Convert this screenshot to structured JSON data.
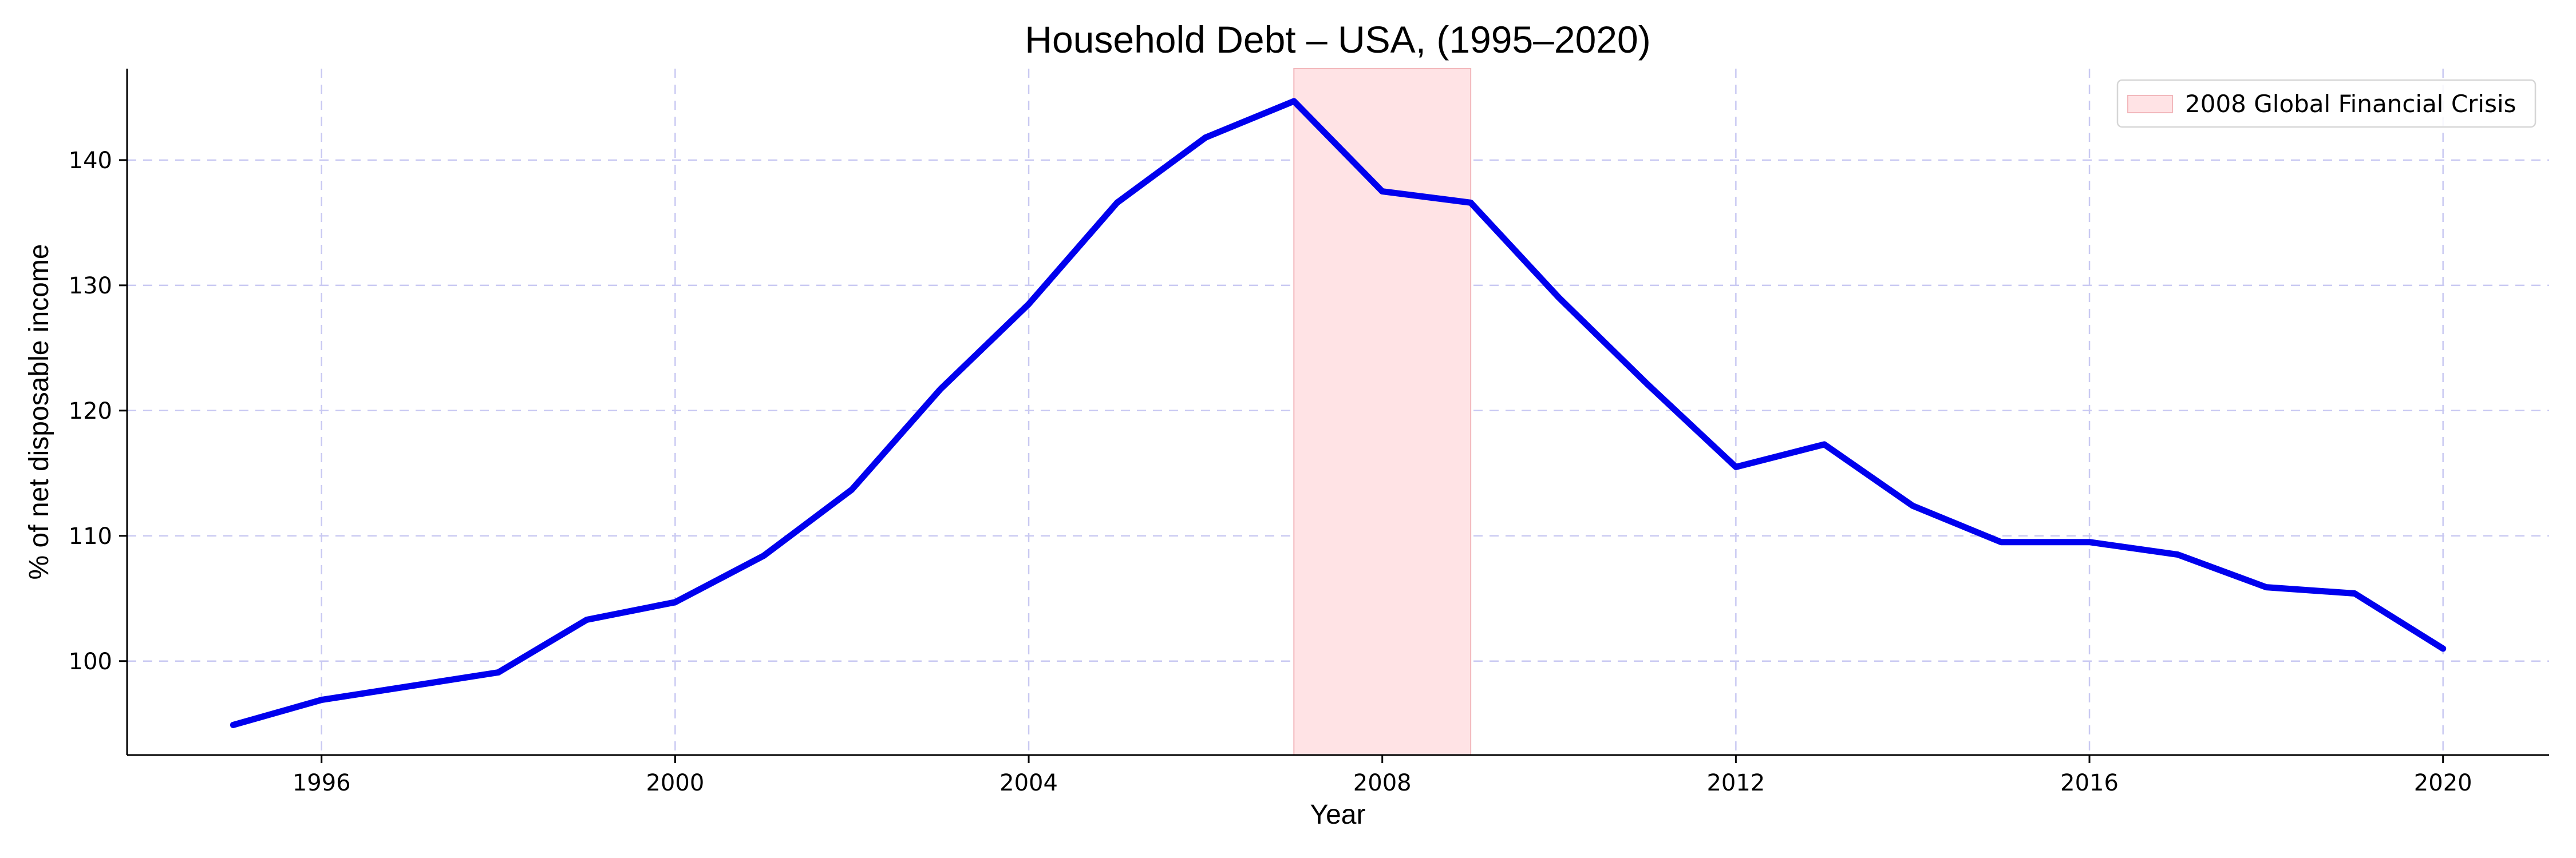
{
  "chart_data": {
    "type": "line",
    "title": "Household Debt – USA, (1995–2020)",
    "xlabel": "Year",
    "ylabel": "% of net disposable income",
    "xlim": [
      1993.8,
      2021.2
    ],
    "ylim": [
      92.5,
      147.3
    ],
    "xticks": [
      1996,
      2000,
      2004,
      2008,
      2012,
      2016,
      2020
    ],
    "yticks": [
      100,
      110,
      120,
      130,
      140
    ],
    "grid": true,
    "legend_position": "top-right",
    "series": [
      {
        "color": "#0000ee",
        "x": [
          1995,
          1996,
          1997,
          1998,
          1999,
          2000,
          2001,
          2002,
          2003,
          2004,
          2005,
          2006,
          2007,
          2008,
          2009,
          2010,
          2011,
          2012,
          2013,
          2014,
          2015,
          2016,
          2017,
          2018,
          2019,
          2020
        ],
        "y": [
          94.9,
          96.9,
          98.0,
          99.1,
          103.3,
          104.7,
          108.4,
          113.7,
          121.7,
          128.5,
          136.6,
          141.8,
          144.7,
          137.5,
          136.6,
          129.0,
          122.1,
          115.5,
          117.3,
          112.4,
          109.5,
          109.5,
          108.5,
          105.9,
          105.4,
          101.0
        ]
      }
    ],
    "shaded_regions": [
      {
        "label": "2008 Global Financial Crisis",
        "x_start": 2007,
        "x_end": 2009,
        "color": "#ffe3e5",
        "edge_color": "#f2b8bc"
      }
    ]
  }
}
